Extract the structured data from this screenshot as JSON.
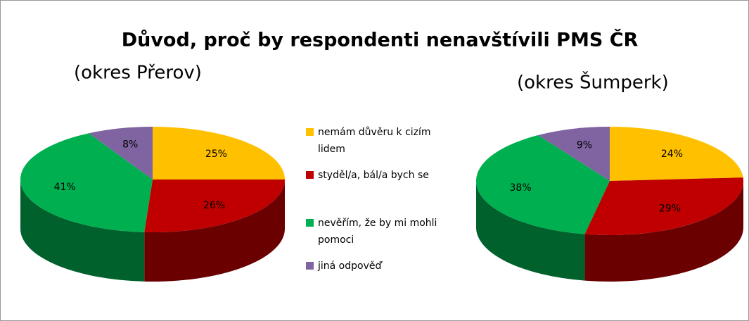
{
  "title": "Důvod, proč by respondenti nenavštívili PMS ČR",
  "categories": [
    "nemám důvěru k cizím lidem",
    "styděl/a, bál/a bych se",
    "nevěřím, že by mi mohli pomoci",
    "jiná odpověď"
  ],
  "colors": [
    "#ffc000",
    "#c00000",
    "#00b050",
    "#8064a2"
  ],
  "chart_data": [
    {
      "type": "pie",
      "subtitle": "(okres Přerov)",
      "values": [
        25,
        26,
        41,
        8
      ],
      "value_labels": [
        "25%",
        "26%",
        "41%",
        "8%"
      ]
    },
    {
      "type": "pie",
      "subtitle": "(okres Šumperk)",
      "values": [
        24,
        29,
        38,
        9
      ],
      "value_labels": [
        "24%",
        "29%",
        "38%",
        "9%"
      ]
    }
  ]
}
